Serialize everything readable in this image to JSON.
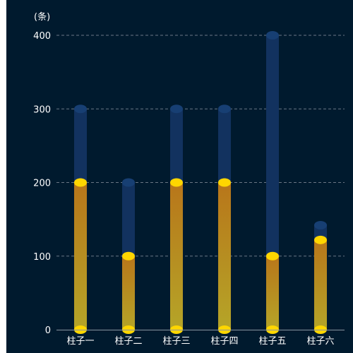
{
  "chart_data": {
    "type": "bar",
    "y_unit_label": "(条)",
    "categories": [
      "柱子一",
      "柱子二",
      "柱子三",
      "柱子四",
      "柱子五",
      "柱子六"
    ],
    "series": [
      {
        "values": [
          300,
          200,
          300,
          300,
          400,
          142
        ]
      },
      {
        "values": [
          200,
          100,
          200,
          200,
          100,
          122
        ]
      }
    ],
    "ylim": [
      0,
      400
    ],
    "yticks": [
      0,
      100,
      200,
      300,
      400
    ],
    "grid": true,
    "colors": {
      "background": "#001a2e",
      "back_bar": "#12325f",
      "back_cap": "#173f73",
      "front_bar_top": "#b8761a",
      "front_bar_bottom": "#b5a528",
      "front_cap": "#ffd600",
      "grid": "#6b7785",
      "axis": "#8a94a0",
      "text": "#ffffff"
    }
  }
}
